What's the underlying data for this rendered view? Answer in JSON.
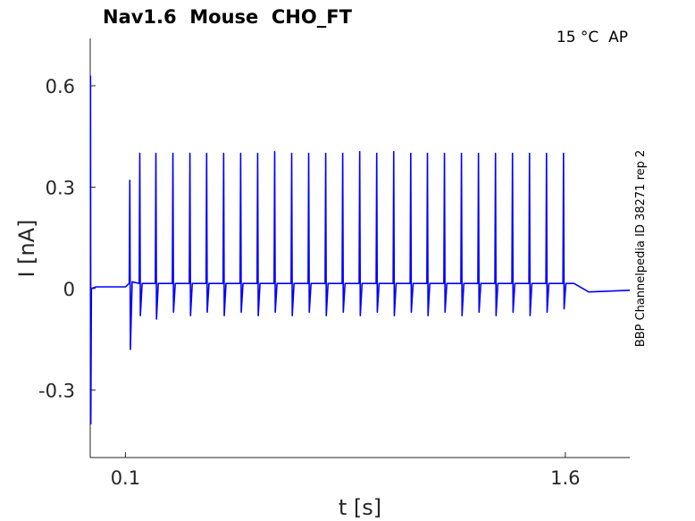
{
  "chart_data": {
    "type": "line",
    "title": "Nav1.6  Mouse  CHO_FT",
    "annotations": [
      "15 °C  AP",
      "BBP Channelpedia ID 38271 rep 2"
    ],
    "xlabel": "t [s]",
    "ylabel": "I [nA]",
    "color": "#0000ff",
    "xlim": [
      -0.02,
      1.82
    ],
    "ylim": [
      -0.5,
      0.74
    ],
    "xticks": [
      0.1,
      1.6
    ],
    "yticks": [
      -0.3,
      0,
      0.3,
      0.6
    ],
    "x": [
      -0.019,
      -0.018,
      -0.016,
      0.0,
      0.1,
      0.113,
      0.115,
      0.117,
      0.123,
      0.147,
      0.149,
      0.151,
      0.157,
      0.202,
      0.204,
      0.206,
      0.212,
      0.26,
      0.262,
      0.264,
      0.27,
      0.318,
      0.32,
      0.322,
      0.328,
      0.375,
      0.377,
      0.379,
      0.385,
      0.433,
      0.435,
      0.437,
      0.443,
      0.491,
      0.493,
      0.495,
      0.501,
      0.549,
      0.551,
      0.553,
      0.559,
      0.607,
      0.609,
      0.611,
      0.617,
      0.665,
      0.667,
      0.669,
      0.675,
      0.723,
      0.725,
      0.727,
      0.733,
      0.781,
      0.783,
      0.785,
      0.791,
      0.839,
      0.841,
      0.843,
      0.849,
      0.897,
      0.899,
      0.901,
      0.907,
      0.955,
      0.957,
      0.959,
      0.965,
      1.013,
      1.015,
      1.017,
      1.023,
      1.071,
      1.073,
      1.075,
      1.081,
      1.128,
      1.13,
      1.132,
      1.138,
      1.186,
      1.188,
      1.19,
      1.196,
      1.244,
      1.246,
      1.248,
      1.254,
      1.302,
      1.304,
      1.306,
      1.312,
      1.36,
      1.362,
      1.364,
      1.37,
      1.418,
      1.42,
      1.422,
      1.428,
      1.476,
      1.478,
      1.48,
      1.486,
      1.534,
      1.536,
      1.538,
      1.544,
      1.592,
      1.594,
      1.596,
      1.602,
      1.63,
      1.68,
      1.82
    ],
    "values": [
      0.63,
      -0.4,
      0.0,
      0.005,
      0.005,
      0.015,
      0.32,
      -0.18,
      0.02,
      0.015,
      0.4,
      -0.08,
      0.015,
      0.015,
      0.4,
      -0.09,
      0.015,
      0.015,
      0.4,
      -0.07,
      0.015,
      0.015,
      0.4,
      -0.08,
      0.015,
      0.015,
      0.4,
      -0.07,
      0.015,
      0.015,
      0.4,
      -0.08,
      0.015,
      0.015,
      0.4,
      -0.07,
      0.015,
      0.015,
      0.4,
      -0.08,
      0.015,
      0.015,
      0.405,
      -0.07,
      0.015,
      0.015,
      0.4,
      -0.08,
      0.015,
      0.015,
      0.4,
      -0.07,
      0.015,
      0.015,
      0.4,
      -0.08,
      0.015,
      0.015,
      0.4,
      -0.07,
      0.015,
      0.015,
      0.405,
      -0.08,
      0.015,
      0.015,
      0.4,
      -0.07,
      0.015,
      0.015,
      0.405,
      -0.08,
      0.015,
      0.015,
      0.4,
      -0.07,
      0.015,
      0.015,
      0.4,
      -0.08,
      0.015,
      0.015,
      0.4,
      -0.07,
      0.015,
      0.015,
      0.4,
      -0.08,
      0.015,
      0.015,
      0.4,
      -0.07,
      0.015,
      0.015,
      0.4,
      -0.08,
      0.015,
      0.015,
      0.4,
      -0.07,
      0.015,
      0.015,
      0.4,
      -0.08,
      0.015,
      0.015,
      0.4,
      -0.07,
      0.015,
      0.015,
      0.4,
      -0.06,
      0.015,
      0.015,
      -0.01,
      -0.005
    ]
  }
}
